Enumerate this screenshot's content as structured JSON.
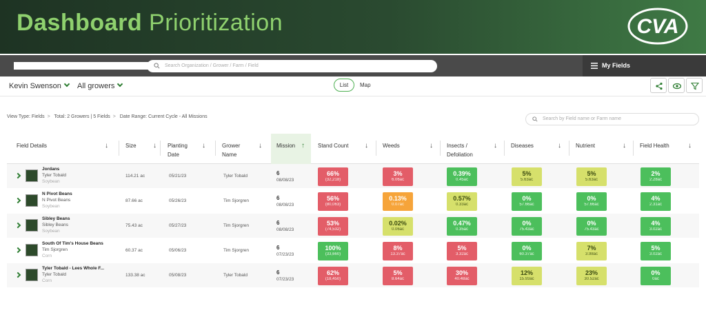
{
  "banner": {
    "title_bold": "Dashboard",
    "title_light": "Prioritization",
    "logo_text": "CVA"
  },
  "search": {
    "placeholder": "Search Organization / Grower / Farm / Field"
  },
  "my_fields": "My Fields",
  "filters": {
    "user": "Kevin Swenson",
    "growers": "All growers",
    "list": "List",
    "map": "Map"
  },
  "viewinfo": {
    "view_type": "View Type: Fields",
    "total": "Total: 2 Growers | 5 Fields",
    "date_range": "Date Range: Current Cycle - All Missions"
  },
  "field_search_placeholder": "Search by Field name or Farm name",
  "columns": {
    "field": "Field Details",
    "size": "Size",
    "planting": "Planting Date",
    "grower": "Grower Name",
    "mission": "Mission",
    "stand": "Stand Count",
    "weeds": "Weeds",
    "insects": "Insects / Defoliation",
    "diseases": "Diseases",
    "nutrient": "Nutrient",
    "health": "Field Health"
  },
  "rows": [
    {
      "name": "Jordans",
      "grower": "Tyler Tobald",
      "crop": "Soybean",
      "size": "114.21 ac",
      "planting": "05/21/23",
      "grower_name": "Tyler Tobald",
      "mission": "6",
      "mission_date": "08/08/23",
      "stand": [
        "66%",
        "(32,218)"
      ],
      "weeds": [
        "3%",
        "6.06ac"
      ],
      "insects": [
        "0.39%",
        "0.45ac"
      ],
      "diseases": [
        "5%",
        "5.63ac"
      ],
      "nutrient": [
        "5%",
        "5.63ac"
      ],
      "health": [
        "2%",
        "2.28ac"
      ]
    },
    {
      "name": "N Pivot Beans",
      "grower": "N Pivot Beans",
      "crop": "Soybean",
      "size": "87.66 ac",
      "planting": "05/26/23",
      "grower_name": "Tim Sjorgren",
      "mission": "6",
      "mission_date": "08/08/23",
      "stand": [
        "56%",
        "(80,063)"
      ],
      "weeds": [
        "0.13%",
        "0.07ac"
      ],
      "insects": [
        "0.57%",
        "0.33ac"
      ],
      "diseases": [
        "0%",
        "57.66ac"
      ],
      "nutrient": [
        "0%",
        "57.66ac"
      ],
      "health": [
        "4%",
        "2.31ac"
      ]
    },
    {
      "name": "Sibley Beans",
      "grower": "Sibley Beans",
      "crop": "Soybean",
      "size": "75.43 ac",
      "planting": "05/27/23",
      "grower_name": "Tim Sjorgren",
      "mission": "6",
      "mission_date": "08/08/23",
      "stand": [
        "53%",
        "(74,532)"
      ],
      "weeds": [
        "0.02%",
        "0.06ac"
      ],
      "insects": [
        "0.47%",
        "0.35ac"
      ],
      "diseases": [
        "0%",
        "75.43ac"
      ],
      "nutrient": [
        "0%",
        "75.43ac"
      ],
      "health": [
        "4%",
        "3.02ac"
      ]
    },
    {
      "name": "South Of Tim's House Beans",
      "grower": "Tim Sjorgren",
      "crop": "Corn",
      "size": "60.37 ac",
      "planting": "05/06/23",
      "grower_name": "Tim Sjorgren",
      "mission": "6",
      "mission_date": "07/23/23",
      "stand": [
        "100%",
        "(33,660)"
      ],
      "weeds": [
        "8%",
        "13.37ac"
      ],
      "insects": [
        "5%",
        "3.32ac"
      ],
      "diseases": [
        "0%",
        "60.37ac"
      ],
      "nutrient": [
        "7%",
        "3.98ac"
      ],
      "health": [
        "5%",
        "3.02ac"
      ]
    },
    {
      "name": "Tyler Tobald - Lees Whole F...",
      "grower": "Tyler Tobald",
      "crop": "Corn",
      "size": "133.38 ac",
      "planting": "05/08/23",
      "grower_name": "Tyler Tobald",
      "mission": "6",
      "mission_date": "07/23/23",
      "stand": [
        "62%",
        "(18,450)"
      ],
      "weeds": [
        "5%",
        "8.64ac"
      ],
      "insects": [
        "30%",
        "40.48ac"
      ],
      "diseases": [
        "12%",
        "15.93ac"
      ],
      "nutrient": [
        "23%",
        "30.52ac"
      ],
      "health": [
        "0%",
        "0ac"
      ]
    }
  ],
  "colors": {
    "red": "#e35d68",
    "orange": "#f6a43a",
    "yellow": "#d6e06b",
    "green": "#4cbf5c"
  },
  "row_colors": [
    [
      "red",
      "red",
      "green",
      "yellow",
      "yellow",
      "green"
    ],
    [
      "red",
      "orange",
      "yellow",
      "green",
      "green",
      "green"
    ],
    [
      "red",
      "yellow",
      "green",
      "green",
      "green",
      "green"
    ],
    [
      "green",
      "red",
      "red",
      "green",
      "yellow",
      "green"
    ],
    [
      "red",
      "red",
      "red",
      "yellow",
      "yellow",
      "green"
    ]
  ]
}
